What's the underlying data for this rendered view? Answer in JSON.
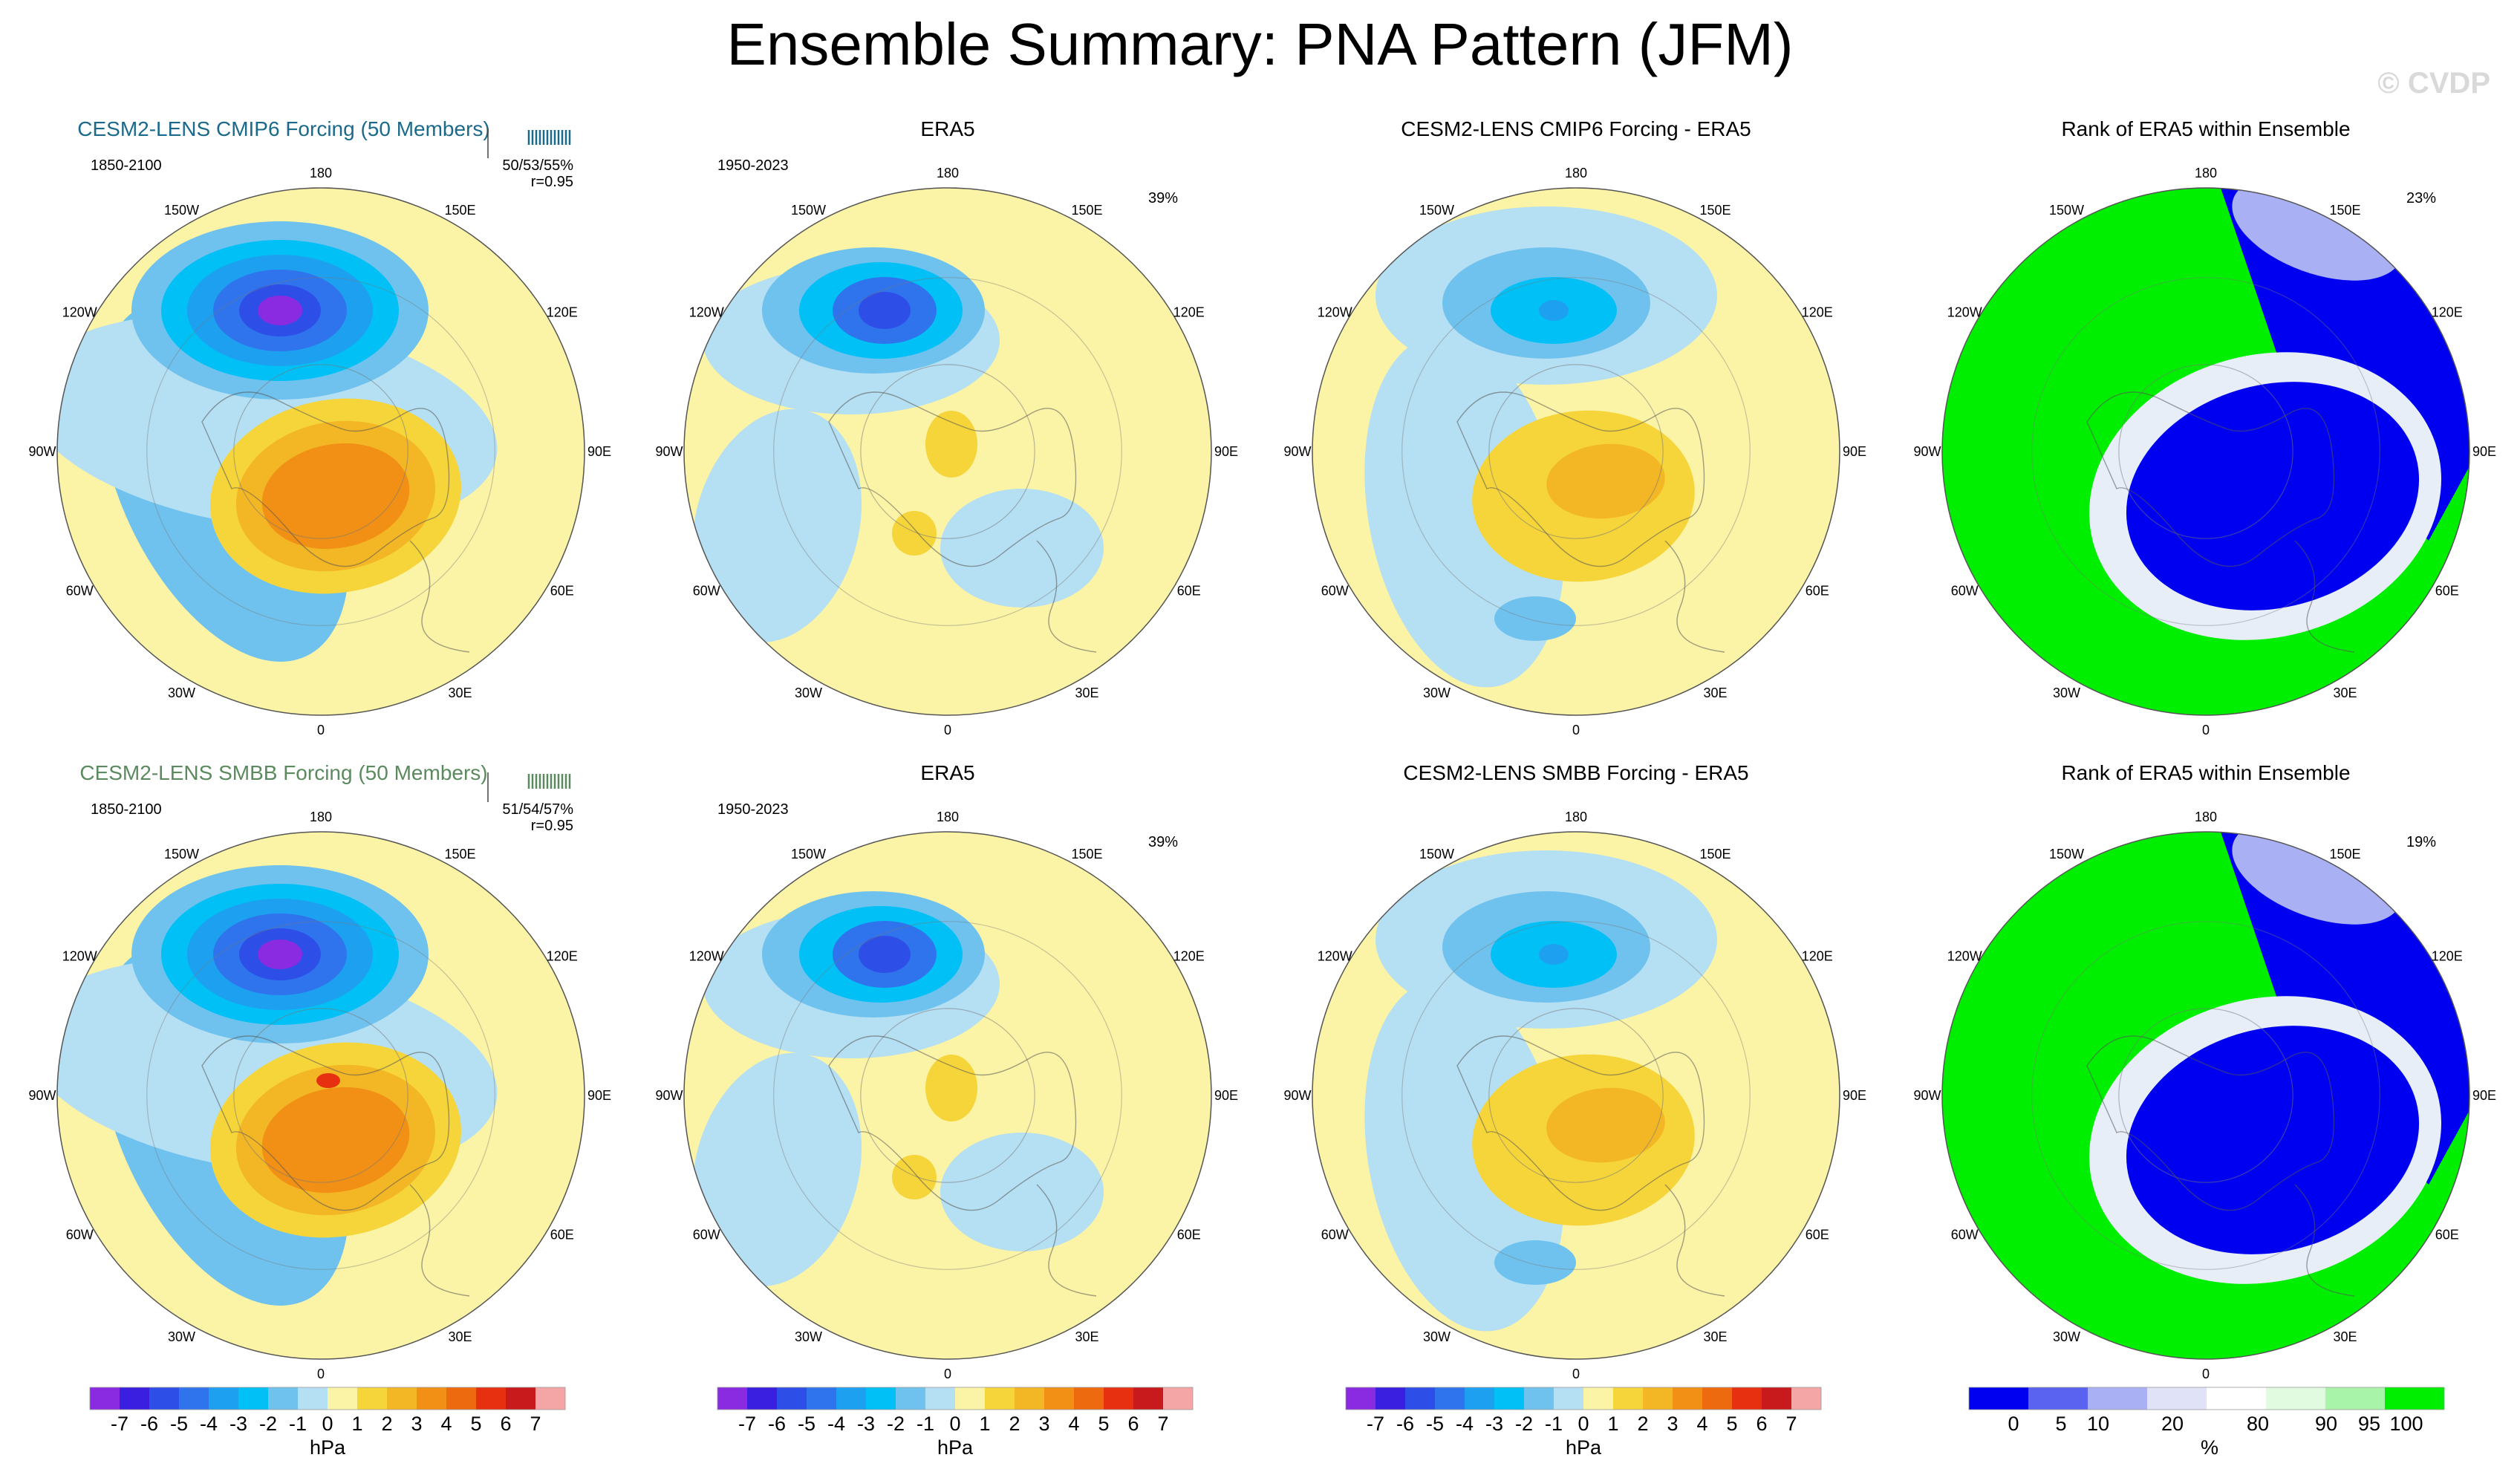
{
  "title": "Ensemble Summary: PNA Pattern (JFM)",
  "watermark": "© CVDP",
  "colors": {
    "title_row1": "#1b6a8c",
    "title_row2": "#5b8a5e",
    "map_scale": [
      "#8a2be2",
      "#3a1fe0",
      "#2d4fe8",
      "#2f74ec",
      "#1ea0f0",
      "#00c0f6",
      "#6fc2ee",
      "#b5dff2",
      "#fbf3a6",
      "#f6d53a",
      "#f3b625",
      "#f19014",
      "#ee6a0f",
      "#e63010",
      "#c8191d",
      "#f4a5a5"
    ],
    "rank_scale": [
      "#0000f0",
      "#5a62f0",
      "#aab0f4",
      "#e0e2f8",
      "#ffffff",
      "#e0fbe0",
      "#a8f4a8",
      "#00ee00"
    ]
  },
  "legend": {
    "hpa_ticks": [
      "-7",
      "-6",
      "-5",
      "-4",
      "-3",
      "-2",
      "-1",
      "0",
      "1",
      "2",
      "3",
      "4",
      "5",
      "6",
      "7"
    ],
    "hpa_unit": "hPa",
    "pct_ticks": [
      "0",
      "5",
      "10",
      "20",
      "80",
      "90",
      "95",
      "100"
    ],
    "pct_unit": "%"
  },
  "lon_labels": {
    "l180": "180",
    "l150w": "150W",
    "l150e": "150E",
    "l120w": "120W",
    "l120e": "120E",
    "l90w": "90W",
    "l90e": "90E",
    "l60w": "60W",
    "l60e": "60E",
    "l30w": "30W",
    "l30e": "30E",
    "l0": "0"
  },
  "panels": [
    {
      "title": "CESM2-LENS CMIP6 Forcing (50 Members)",
      "years": "1850-2100",
      "stat": "50/53/55%",
      "r": "r=0.95",
      "pct": "",
      "kind": "model",
      "row": 0,
      "col": 0
    },
    {
      "title": "ERA5",
      "years": "1950-2023",
      "stat": "",
      "r": "",
      "pct": "39%",
      "kind": "obs",
      "row": 0,
      "col": 1
    },
    {
      "title": "CESM2-LENS CMIP6 Forcing - ERA5",
      "years": "",
      "stat": "",
      "r": "",
      "pct": "",
      "kind": "diff",
      "row": 0,
      "col": 2
    },
    {
      "title": "Rank of ERA5 within Ensemble",
      "years": "",
      "stat": "",
      "r": "",
      "pct": "23%",
      "kind": "rank",
      "row": 0,
      "col": 3
    },
    {
      "title": "CESM2-LENS SMBB Forcing (50 Members)",
      "years": "1850-2100",
      "stat": "51/54/57%",
      "r": "r=0.95",
      "pct": "",
      "kind": "model",
      "row": 1,
      "col": 0
    },
    {
      "title": "ERA5",
      "years": "1950-2023",
      "stat": "",
      "r": "",
      "pct": "39%",
      "kind": "obs",
      "row": 1,
      "col": 1
    },
    {
      "title": "CESM2-LENS SMBB Forcing - ERA5",
      "years": "",
      "stat": "",
      "r": "",
      "pct": "",
      "kind": "diff",
      "row": 1,
      "col": 2
    },
    {
      "title": "Rank of ERA5 within Ensemble",
      "years": "",
      "stat": "",
      "r": "",
      "pct": "19%",
      "kind": "rank",
      "row": 1,
      "col": 3
    }
  ]
}
